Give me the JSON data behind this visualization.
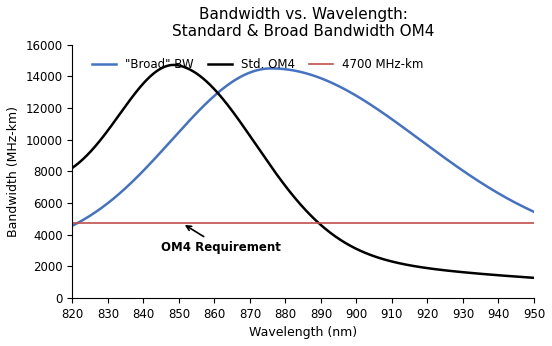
{
  "title": "Bandwidth vs. Wavelength:\nStandard & Broad Bandwidth OM4",
  "xlabel": "Wavelength (nm)",
  "ylabel": "Bandwidth (MHz-km)",
  "xlim": [
    820,
    950
  ],
  "ylim": [
    0,
    16000
  ],
  "xticks": [
    820,
    830,
    840,
    850,
    860,
    870,
    880,
    890,
    900,
    910,
    920,
    930,
    940,
    950
  ],
  "yticks": [
    0,
    2000,
    4000,
    6000,
    8000,
    10000,
    12000,
    14000,
    16000
  ],
  "horizontal_line_y": 4700,
  "horizontal_line_color": "#c0504d",
  "std_om4_color": "#000000",
  "broad_bw_color": "#4472c4",
  "annotation_text": "OM4 Requirement",
  "legend_labels": [
    "\"Broad\" BW",
    "Std. OM4",
    "4700 MHz-km"
  ],
  "background_color": "#ffffff",
  "title_fontsize": 11,
  "label_fontsize": 9,
  "tick_fontsize": 8.5
}
